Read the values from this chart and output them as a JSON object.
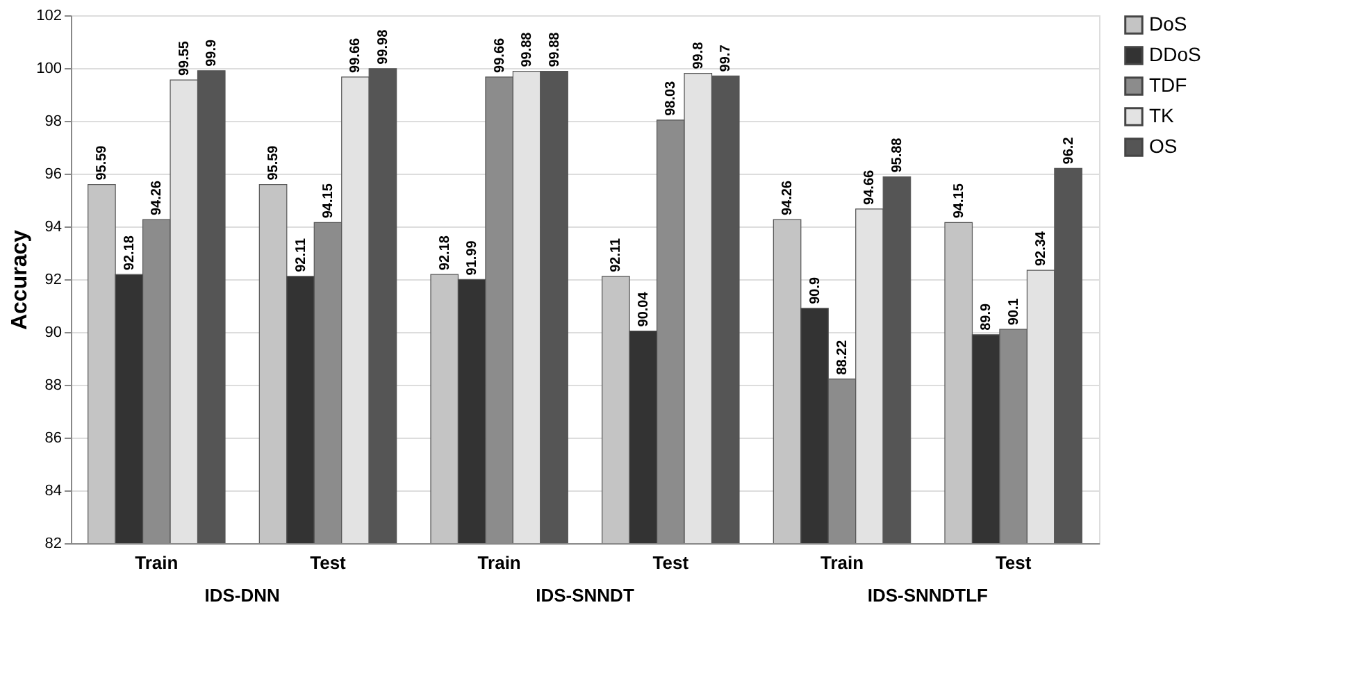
{
  "chart_data": {
    "type": "bar",
    "ylabel": "Accuracy",
    "categories": [
      "Train",
      "Test",
      "Train",
      "Test",
      "Train",
      "Test"
    ],
    "annotations": [
      "IDS-DNN",
      "IDS-SNNDT",
      "IDS-SNNDTLF"
    ],
    "series": [
      {
        "name": "DoS",
        "color": "#c4c4c4",
        "values": [
          95.59,
          95.59,
          92.18,
          92.11,
          94.26,
          94.15
        ]
      },
      {
        "name": "DDoS",
        "color": "#333333",
        "values": [
          92.18,
          92.11,
          91.99,
          90.04,
          90.9,
          89.9
        ]
      },
      {
        "name": "TDF",
        "color": "#8c8c8c",
        "values": [
          94.26,
          94.15,
          99.66,
          98.03,
          88.22,
          90.1
        ]
      },
      {
        "name": "TK",
        "color": "#e3e3e3",
        "values": [
          99.55,
          99.66,
          99.88,
          99.8,
          94.66,
          92.34
        ]
      },
      {
        "name": "OS",
        "color": "#555555",
        "values": [
          99.9,
          99.98,
          99.88,
          99.7,
          95.88,
          96.2
        ]
      }
    ],
    "ylim": [
      82,
      102
    ],
    "yticks": [
      82,
      84,
      86,
      88,
      90,
      92,
      94,
      96,
      98,
      100,
      102
    ],
    "grid": "y",
    "legend": "right",
    "data_labels": true
  }
}
